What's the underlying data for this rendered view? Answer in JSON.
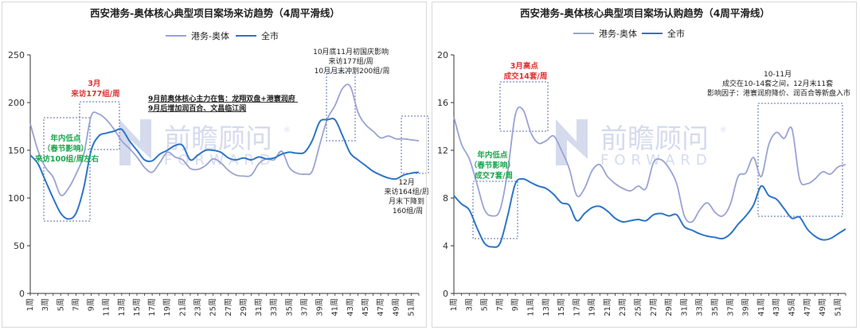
{
  "watermark": {
    "brand_cn": "前瞻顾问",
    "brand_en": "FORWARD",
    "reg": "®"
  },
  "colors": {
    "gangwu": "#9aa3d4",
    "city": "#2e75c8",
    "annot_red": "#e03030",
    "annot_green": "#1aa84f",
    "annot_dark": "#222222",
    "box": "#5b6fb5"
  },
  "x_ticks": [
    "1周",
    "3周",
    "5周",
    "7周",
    "9周",
    "11周",
    "13周",
    "15周",
    "17周",
    "19周",
    "21周",
    "23周",
    "25周",
    "27周",
    "29周",
    "31周",
    "33周",
    "35周",
    "37周",
    "39周",
    "41周",
    "43周",
    "45周",
    "47周",
    "49周",
    "51周"
  ],
  "chart_data": [
    {
      "type": "line",
      "title": "西安港务-奥体核心典型项目案场来访趋势（4周平滑线）",
      "xlabel": "",
      "ylabel": "",
      "ylim": [
        0,
        250
      ],
      "yticks": [
        0,
        50,
        100,
        150,
        200,
        250
      ],
      "legend": "top-center",
      "grid": false,
      "weeks": [
        1,
        2,
        3,
        4,
        5,
        6,
        7,
        8,
        9,
        10,
        11,
        12,
        13,
        14,
        15,
        16,
        17,
        18,
        19,
        20,
        21,
        22,
        23,
        24,
        25,
        26,
        27,
        28,
        29,
        30,
        31,
        32,
        33,
        34,
        35,
        36,
        37,
        38,
        39,
        40,
        41,
        42,
        43,
        44,
        45,
        46,
        47,
        48,
        49,
        50,
        51,
        52
      ],
      "series": [
        {
          "name": "港务-奥体",
          "color": "#9aa3d4",
          "values": [
            178,
            150,
            132,
            122,
            103,
            110,
            125,
            145,
            186,
            188,
            182,
            172,
            160,
            152,
            143,
            132,
            127,
            137,
            148,
            143,
            140,
            131,
            130,
            134,
            141,
            137,
            129,
            124,
            123,
            124,
            136,
            141,
            140,
            149,
            132,
            126,
            125,
            128,
            156,
            183,
            197,
            215,
            217,
            190,
            177,
            170,
            163,
            165,
            162,
            162,
            161,
            160
          ]
        },
        {
          "name": "全市",
          "color": "#2e75c8",
          "values": [
            145,
            136,
            118,
            100,
            84,
            78,
            84,
            110,
            150,
            165,
            168,
            170,
            172,
            160,
            150,
            140,
            139,
            146,
            150,
            155,
            155,
            140,
            145,
            150,
            150,
            148,
            142,
            140,
            142,
            140,
            143,
            141,
            142,
            146,
            148,
            147,
            148,
            160,
            180,
            182,
            182,
            165,
            147,
            140,
            134,
            128,
            124,
            121,
            120,
            124,
            126,
            127
          ]
        }
      ],
      "annotations": [
        {
          "id": "march",
          "lines": [
            "3月",
            "来访177组/周"
          ],
          "color": "red"
        },
        {
          "id": "low",
          "lines": [
            "年内低点",
            "（春节影响）",
            "来访100组/周左右"
          ],
          "color": "green"
        },
        {
          "id": "sept",
          "lines": [
            "9月前奥体核心主力在售：龙翔双盘+港寰润府",
            "9月后增加润百合、文昌临江阅"
          ],
          "color": "dark"
        },
        {
          "id": "oct",
          "lines": [
            "10月底11月初国庆影响",
            "来访177组/周",
            "10月月末冲到200组/周"
          ],
          "color": "dark"
        },
        {
          "id": "dec",
          "lines": [
            "12月",
            "来访164组/周",
            "月末下降到",
            "160组/周"
          ],
          "color": "dark"
        }
      ]
    },
    {
      "type": "line",
      "title": "西安港务-奥体核心典型项目案场认购趋势（4周平滑线）",
      "xlabel": "",
      "ylabel": "",
      "ylim": [
        0,
        20
      ],
      "yticks": [
        0,
        4,
        8,
        12,
        16,
        20
      ],
      "legend": "top-center",
      "grid": false,
      "weeks": [
        1,
        2,
        3,
        4,
        5,
        6,
        7,
        8,
        9,
        10,
        11,
        12,
        13,
        14,
        15,
        16,
        17,
        18,
        19,
        20,
        21,
        22,
        23,
        24,
        25,
        26,
        27,
        28,
        29,
        30,
        31,
        32,
        33,
        34,
        35,
        36,
        37,
        38,
        39,
        40,
        41,
        42,
        43,
        44,
        45,
        46,
        47,
        48,
        49,
        50,
        51,
        52
      ],
      "series": [
        {
          "name": "港务-奥体",
          "color": "#9aa3d4",
          "values": [
            14.8,
            12.5,
            11.3,
            9.2,
            7.0,
            6.5,
            7.0,
            10.2,
            15.0,
            15.4,
            13.5,
            12.6,
            12.8,
            13.2,
            12.0,
            10.5,
            8.2,
            8.8,
            10.3,
            10.8,
            9.8,
            9.2,
            8.8,
            8.6,
            9.0,
            8.8,
            11.0,
            11.2,
            10.5,
            9.2,
            6.5,
            6.0,
            7.0,
            7.6,
            6.8,
            6.5,
            7.5,
            9.8,
            10.1,
            11.4,
            9.8,
            12.5,
            13.5,
            13.0,
            13.8,
            9.6,
            9.2,
            9.6,
            10.2,
            10.0,
            10.6,
            10.8
          ]
        },
        {
          "name": "全市",
          "color": "#2e75c8",
          "values": [
            8.2,
            7.5,
            7.0,
            5.5,
            4.2,
            3.9,
            4.2,
            6.5,
            9.2,
            9.6,
            9.3,
            9.0,
            8.8,
            8.3,
            7.6,
            7.4,
            6.1,
            6.7,
            7.2,
            7.3,
            6.9,
            6.3,
            6.0,
            6.1,
            6.2,
            6.1,
            6.6,
            6.7,
            6.5,
            6.6,
            5.6,
            5.3,
            5.0,
            4.8,
            4.7,
            4.6,
            5.0,
            5.8,
            6.5,
            7.4,
            9.0,
            8.2,
            7.9,
            7.1,
            6.3,
            6.4,
            5.4,
            4.8,
            4.5,
            4.6,
            5.0,
            5.4
          ]
        }
      ],
      "annotations": [
        {
          "id": "march",
          "lines": [
            "3月高点",
            "成交14套/周"
          ],
          "color": "red"
        },
        {
          "id": "low",
          "lines": [
            "年内低点",
            "（春节影响）",
            "成交7套/周"
          ],
          "color": "green"
        },
        {
          "id": "oct",
          "lines": [
            "10-11月",
            "成交在10-14套之间，12月末11套",
            "影响因子：港寰润府降价、润百合等新盘入市"
          ],
          "color": "dark"
        }
      ]
    }
  ]
}
